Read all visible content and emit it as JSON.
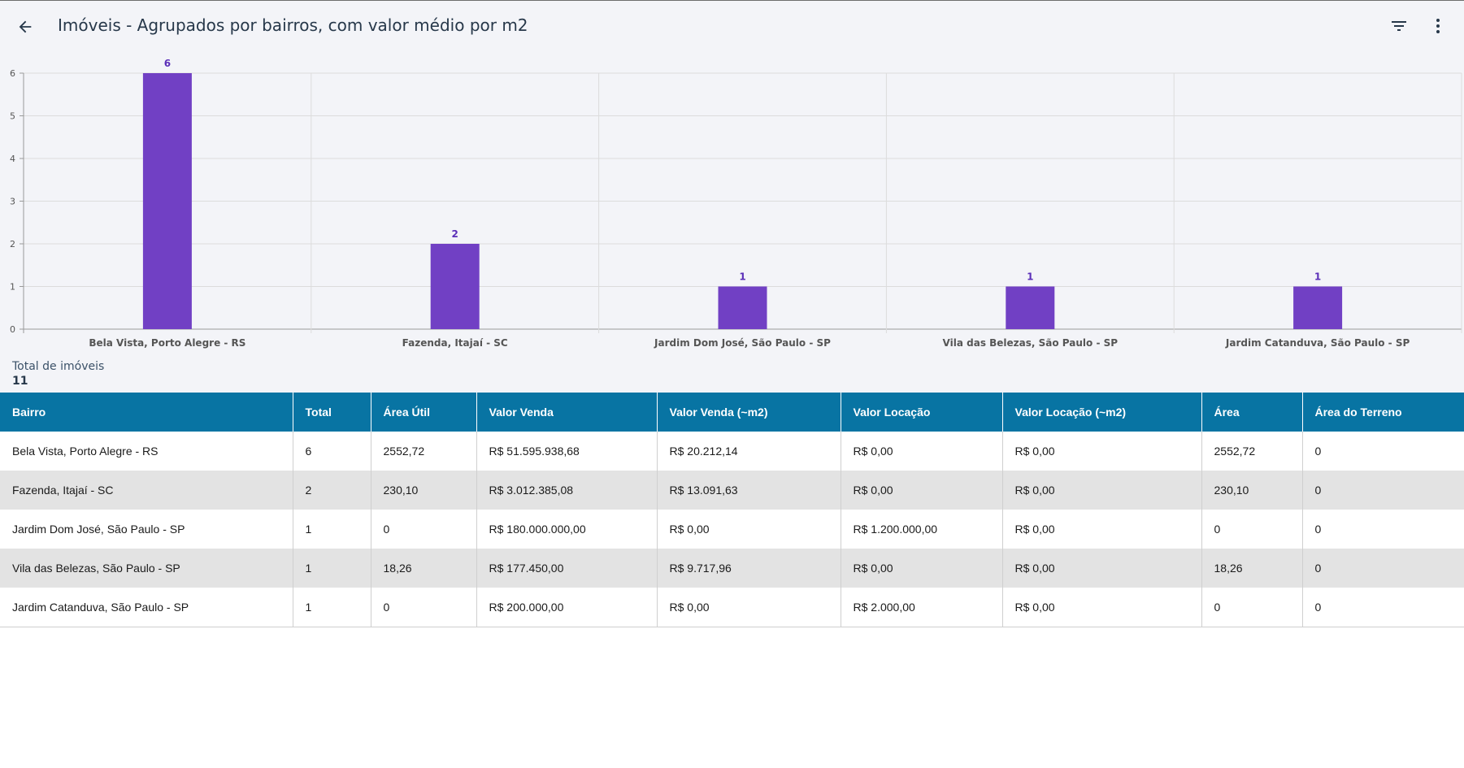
{
  "header": {
    "back_icon": "arrow-left-icon",
    "title": "Imóveis - Agrupados por bairros, com valor médio por m2",
    "filter_icon": "filter-icon",
    "more_icon": "more-vert-icon"
  },
  "colors": {
    "bar": "#7140c4",
    "value_label": "#5b2fb8",
    "table_header": "#0874a3",
    "background": "#f3f4f8"
  },
  "chart_data": {
    "type": "bar",
    "categories": [
      "Bela Vista, Porto Alegre - RS",
      "Fazenda, Itajaí - SC",
      "Jardim Dom José, São Paulo - SP",
      "Vila das Belezas, São Paulo - SP",
      "Jardim Catanduva, São Paulo - SP"
    ],
    "values": [
      6,
      2,
      1,
      1,
      1
    ],
    "y_ticks": [
      0,
      1,
      2,
      3,
      4,
      5,
      6
    ],
    "ylim": [
      0,
      6
    ],
    "grid": true,
    "data_labels": true,
    "legend": "none"
  },
  "summary": {
    "label": "Total de imóveis",
    "value": "11"
  },
  "table": {
    "columns": [
      "Bairro",
      "Total",
      "Área Útil",
      "Valor Venda",
      "Valor Venda (~m2)",
      "Valor Locação",
      "Valor Locação (~m2)",
      "Área",
      "Área do Terreno"
    ],
    "rows": [
      [
        "Bela Vista, Porto Alegre - RS",
        "6",
        "2552,72",
        "R$ 51.595.938,68",
        "R$ 20.212,14",
        "R$ 0,00",
        "R$ 0,00",
        "2552,72",
        "0"
      ],
      [
        "Fazenda, Itajaí - SC",
        "2",
        "230,10",
        "R$ 3.012.385,08",
        "R$ 13.091,63",
        "R$ 0,00",
        "R$ 0,00",
        "230,10",
        "0"
      ],
      [
        "Jardim Dom José, São Paulo - SP",
        "1",
        "0",
        "R$ 180.000.000,00",
        "R$ 0,00",
        "R$ 1.200.000,00",
        "R$ 0,00",
        "0",
        "0"
      ],
      [
        "Vila das Belezas, São Paulo - SP",
        "1",
        "18,26",
        "R$ 177.450,00",
        "R$ 9.717,96",
        "R$ 0,00",
        "R$ 0,00",
        "18,26",
        "0"
      ],
      [
        "Jardim Catanduva, São Paulo - SP",
        "1",
        "0",
        "R$ 200.000,00",
        "R$ 0,00",
        "R$ 2.000,00",
        "R$ 0,00",
        "0",
        "0"
      ]
    ]
  }
}
